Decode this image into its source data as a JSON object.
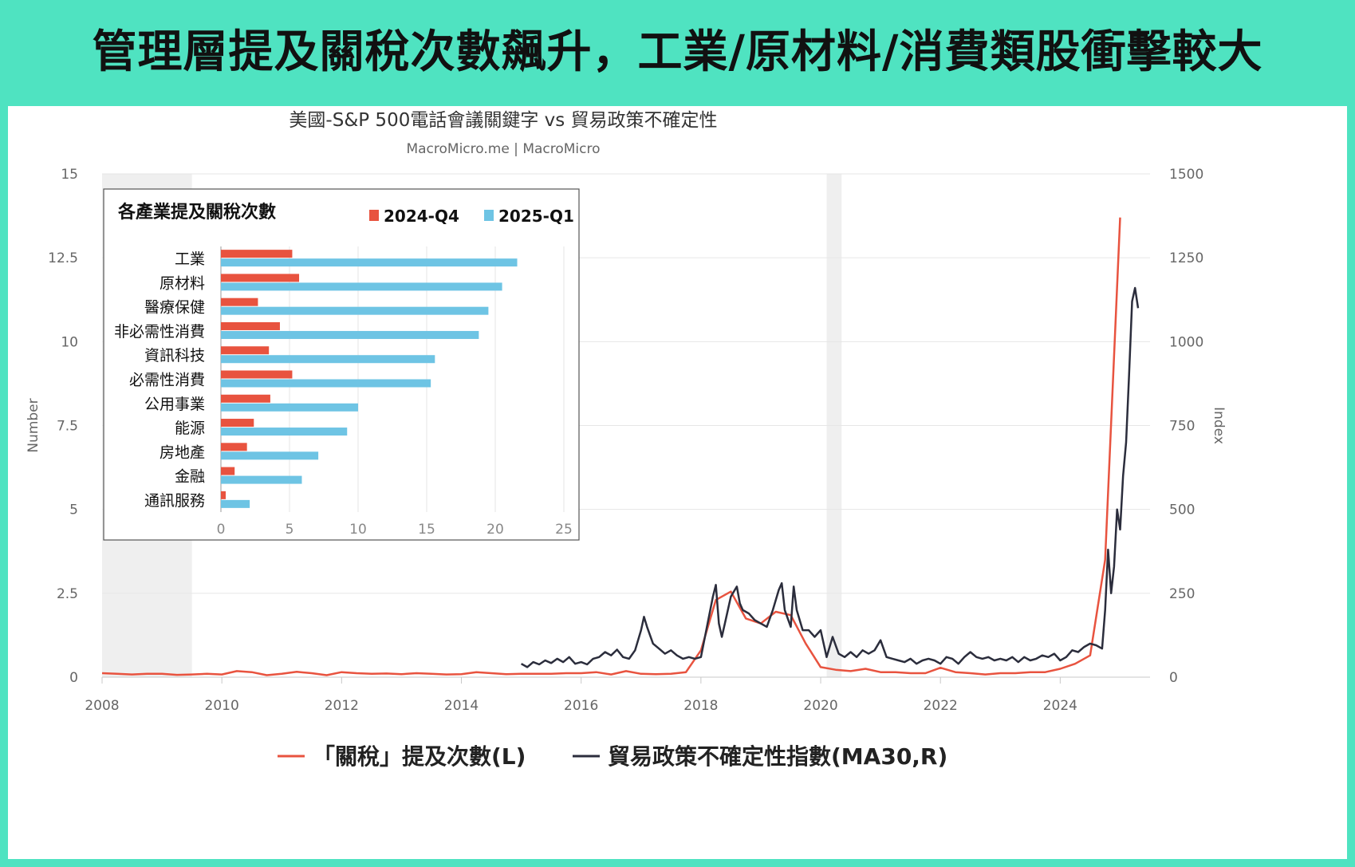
{
  "headline": "管理層提及關稅次數飆升，工業/原材料/消費類股衝擊較大",
  "chart_title": "美國-S&P 500電話會議關鍵字 vs 貿易政策不確定性",
  "chart_subtitle": "MacroMicro.me | MacroMicro",
  "legend": {
    "line_series_1": "「關稅」提及次數(L)",
    "line_series_2": "貿易政策不確定性指數(MA30,R)"
  },
  "colors": {
    "series_tariff": "#e8533f",
    "series_uncertainty": "#2b2d3c",
    "bar_q4": "#e8533f",
    "bar_q1": "#6ec4e4",
    "recession_shade": "#efefef",
    "grid": "#e6e6e6",
    "axis_text": "#666666"
  },
  "chart_data": [
    {
      "type": "line",
      "title": "美國-S&P 500電話會議關鍵字 vs 貿易政策不確定性",
      "subtitle": "MacroMicro.me | MacroMicro",
      "xlim": [
        2008,
        2025.5
      ],
      "x_ticks": [
        2008,
        2010,
        2012,
        2014,
        2016,
        2018,
        2020,
        2022,
        2024
      ],
      "y_left": {
        "label": "Number",
        "lim": [
          0,
          15
        ],
        "ticks": [
          0,
          2.5,
          5,
          7.5,
          10,
          12.5,
          15
        ]
      },
      "y_right": {
        "label": "Index",
        "lim": [
          0,
          1500
        ],
        "ticks": [
          0,
          250,
          500,
          750,
          1000,
          1250,
          1500
        ]
      },
      "grid": true,
      "legend_position": "bottom",
      "recession_shading": [
        [
          2008.0,
          2009.5
        ],
        [
          2020.1,
          2020.35
        ]
      ],
      "series": [
        {
          "name": "「關稅」提及次數(L)",
          "axis": "left",
          "x": [
            2008.0,
            2008.25,
            2008.5,
            2008.75,
            2009.0,
            2009.25,
            2009.5,
            2009.75,
            2010.0,
            2010.25,
            2010.5,
            2010.75,
            2011.0,
            2011.25,
            2011.5,
            2011.75,
            2012.0,
            2012.25,
            2012.5,
            2012.75,
            2013.0,
            2013.25,
            2013.5,
            2013.75,
            2014.0,
            2014.25,
            2014.5,
            2014.75,
            2015.0,
            2015.25,
            2015.5,
            2015.75,
            2016.0,
            2016.25,
            2016.5,
            2016.75,
            2017.0,
            2017.25,
            2017.5,
            2017.75,
            2018.0,
            2018.25,
            2018.5,
            2018.75,
            2019.0,
            2019.25,
            2019.5,
            2019.75,
            2020.0,
            2020.25,
            2020.5,
            2020.75,
            2021.0,
            2021.25,
            2021.5,
            2021.75,
            2022.0,
            2022.25,
            2022.5,
            2022.75,
            2023.0,
            2023.25,
            2023.5,
            2023.75,
            2024.0,
            2024.25,
            2024.5,
            2024.75,
            2025.0
          ],
          "y": [
            0.12,
            0.1,
            0.08,
            0.1,
            0.1,
            0.07,
            0.08,
            0.1,
            0.08,
            0.18,
            0.15,
            0.06,
            0.1,
            0.16,
            0.12,
            0.06,
            0.15,
            0.12,
            0.1,
            0.11,
            0.09,
            0.12,
            0.1,
            0.08,
            0.09,
            0.15,
            0.12,
            0.09,
            0.1,
            0.1,
            0.1,
            0.12,
            0.12,
            0.15,
            0.08,
            0.18,
            0.1,
            0.09,
            0.1,
            0.15,
            0.8,
            2.3,
            2.55,
            1.75,
            1.6,
            1.95,
            1.85,
            1.0,
            0.3,
            0.22,
            0.18,
            0.25,
            0.15,
            0.15,
            0.12,
            0.12,
            0.28,
            0.15,
            0.12,
            0.08,
            0.12,
            0.12,
            0.15,
            0.15,
            0.25,
            0.4,
            0.65,
            3.5,
            13.7
          ]
        },
        {
          "name": "貿易政策不確定性指數(MA30,R)",
          "axis": "right",
          "x": [
            2015.0,
            2015.1,
            2015.2,
            2015.3,
            2015.4,
            2015.5,
            2015.6,
            2015.7,
            2015.8,
            2015.9,
            2016.0,
            2016.1,
            2016.2,
            2016.3,
            2016.4,
            2016.5,
            2016.6,
            2016.7,
            2016.8,
            2016.9,
            2017.0,
            2017.05,
            2017.1,
            2017.2,
            2017.3,
            2017.4,
            2017.5,
            2017.6,
            2017.7,
            2017.8,
            2017.9,
            2018.0,
            2018.1,
            2018.2,
            2018.25,
            2018.3,
            2018.35,
            2018.4,
            2018.5,
            2018.6,
            2018.65,
            2018.7,
            2018.8,
            2018.9,
            2019.0,
            2019.1,
            2019.2,
            2019.3,
            2019.35,
            2019.4,
            2019.5,
            2019.55,
            2019.6,
            2019.7,
            2019.8,
            2019.9,
            2020.0,
            2020.1,
            2020.2,
            2020.3,
            2020.4,
            2020.5,
            2020.6,
            2020.7,
            2020.8,
            2020.9,
            2021.0,
            2021.1,
            2021.2,
            2021.3,
            2021.4,
            2021.5,
            2021.6,
            2021.7,
            2021.8,
            2021.9,
            2022.0,
            2022.1,
            2022.2,
            2022.3,
            2022.4,
            2022.5,
            2022.6,
            2022.7,
            2022.8,
            2022.9,
            2023.0,
            2023.1,
            2023.2,
            2023.3,
            2023.4,
            2023.5,
            2023.6,
            2023.7,
            2023.8,
            2023.9,
            2024.0,
            2024.1,
            2024.2,
            2024.3,
            2024.4,
            2024.5,
            2024.6,
            2024.7,
            2024.75,
            2024.8,
            2024.85,
            2024.9,
            2024.95,
            2025.0,
            2025.05,
            2025.1,
            2025.15,
            2025.2,
            2025.25,
            2025.3
          ],
          "y": [
            40,
            30,
            45,
            38,
            50,
            42,
            55,
            45,
            60,
            40,
            45,
            38,
            55,
            60,
            75,
            65,
            82,
            60,
            55,
            80,
            140,
            180,
            150,
            100,
            85,
            70,
            80,
            65,
            55,
            60,
            55,
            60,
            150,
            240,
            275,
            160,
            120,
            160,
            240,
            270,
            220,
            200,
            190,
            170,
            160,
            150,
            200,
            260,
            280,
            200,
            150,
            270,
            200,
            140,
            140,
            120,
            140,
            60,
            120,
            70,
            60,
            75,
            60,
            80,
            70,
            80,
            110,
            60,
            55,
            50,
            45,
            55,
            40,
            50,
            55,
            50,
            40,
            60,
            55,
            40,
            60,
            75,
            60,
            55,
            60,
            50,
            55,
            50,
            60,
            45,
            60,
            50,
            55,
            65,
            60,
            70,
            50,
            60,
            80,
            75,
            90,
            100,
            95,
            85,
            200,
            380,
            250,
            330,
            500,
            440,
            600,
            700,
            900,
            1120,
            1160,
            1100
          ]
        }
      ]
    },
    {
      "type": "bar",
      "orientation": "horizontal",
      "title": "各產業提及關稅次數",
      "categories": [
        "工業",
        "原材料",
        "醫療保健",
        "非必需性消費",
        "資訊科技",
        "必需性消費",
        "公用事業",
        "能源",
        "房地產",
        "金融",
        "通訊服務"
      ],
      "xlim": [
        0,
        25
      ],
      "x_ticks": [
        0,
        5,
        10,
        15,
        20,
        25
      ],
      "legend_position": "top-right",
      "grid": true,
      "series": [
        {
          "name": "2024-Q4",
          "values": [
            5.2,
            5.7,
            2.7,
            4.3,
            3.5,
            5.2,
            3.6,
            2.4,
            1.9,
            1.0,
            0.35
          ]
        },
        {
          "name": "2025-Q1",
          "values": [
            21.6,
            20.5,
            19.5,
            18.8,
            15.6,
            15.3,
            10.0,
            9.2,
            7.1,
            5.9,
            2.1
          ]
        }
      ]
    }
  ]
}
